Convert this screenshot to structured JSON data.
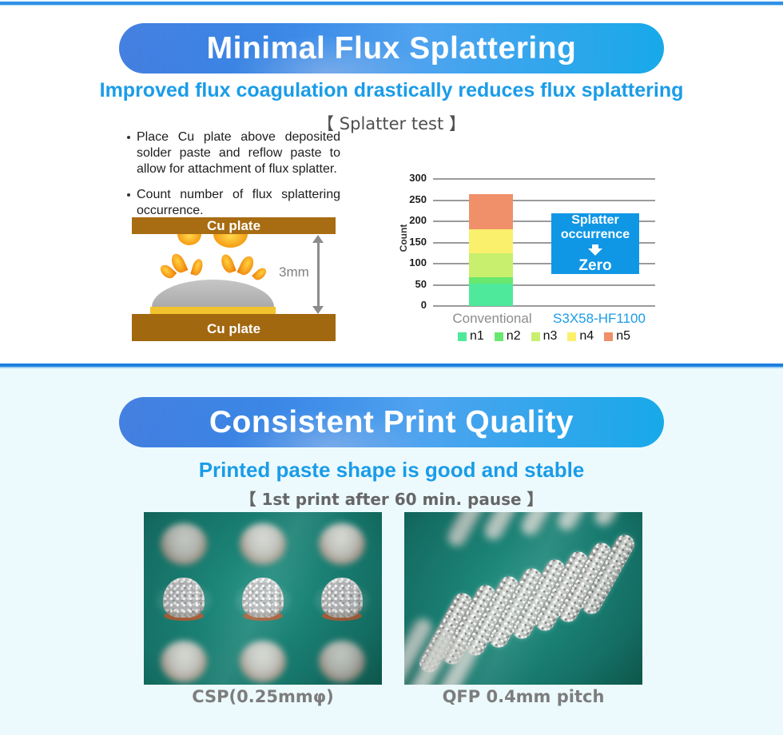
{
  "page": {
    "accent_blue": "#1b9ce8",
    "top_line_color": "#2f90e5",
    "section2_bg": "#ecfafd"
  },
  "section_splatter": {
    "title": "Minimal Flux Splattering",
    "subtitle": "Improved flux coagulation drastically reduces flux splattering",
    "test_label": "【 Splatter test 】",
    "bullets": [
      "Place Cu plate above deposited solder paste and reflow paste to allow for attachment of flux splatter.",
      "Count number of flux splattering occurrence."
    ],
    "diagram": {
      "top_plate_label": "Cu plate",
      "bottom_plate_label": "Cu plate",
      "gap_label": "3mm",
      "plate_color": "#a86c12",
      "paste_color": "#b0b0b0",
      "flux_color": "#f29a1e"
    },
    "chart_data": {
      "type": "bar",
      "stacked": true,
      "ylabel": "Count",
      "ylim": [
        0,
        300
      ],
      "yticks": [
        0,
        50,
        100,
        150,
        200,
        250,
        300
      ],
      "grid": true,
      "legend_position": "bottom",
      "categories": [
        "Conventional",
        "S3X58-HF1100"
      ],
      "category_colors": [
        "#8c8c8c",
        "#1b9ce8"
      ],
      "series": [
        {
          "name": "n1",
          "color": "#4fe99b",
          "values": [
            52,
            0
          ]
        },
        {
          "name": "n2",
          "color": "#68e86e",
          "values": [
            16,
            0
          ]
        },
        {
          "name": "n3",
          "color": "#c8ef6e",
          "values": [
            57,
            0
          ]
        },
        {
          "name": "n4",
          "color": "#faf06c",
          "values": [
            57,
            0
          ]
        },
        {
          "name": "n5",
          "color": "#f0906a",
          "values": [
            83,
            0
          ]
        }
      ],
      "totals": [
        265,
        0
      ],
      "annotation": {
        "line1": "Splatter",
        "line2": "occurrence",
        "result": "Zero",
        "bg": "#0f97e6"
      }
    }
  },
  "section_print": {
    "title": "Consistent Print Quality",
    "subtitle": "Printed paste shape is good and stable",
    "test_label": "【 1st print after 60 min. pause 】",
    "photos": [
      {
        "caption": "CSP(0.25mmφ)"
      },
      {
        "caption": "QFP 0.4mm pitch"
      }
    ]
  }
}
